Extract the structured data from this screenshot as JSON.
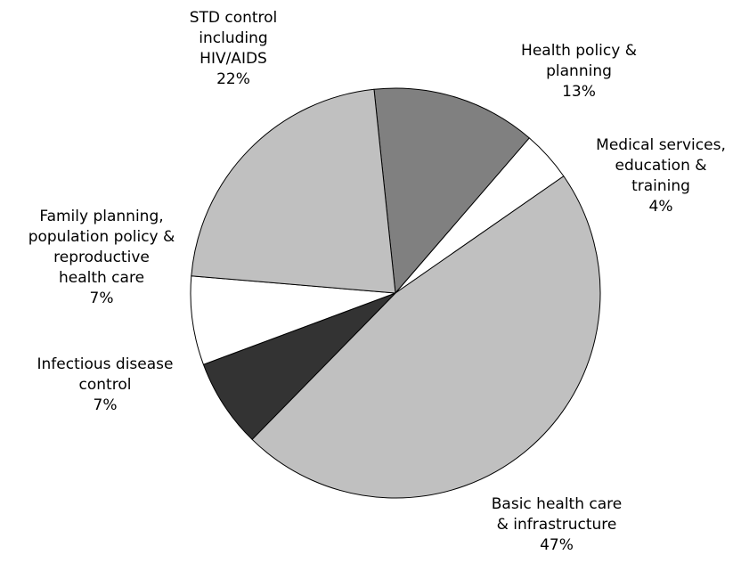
{
  "chart_data": {
    "type": "pie",
    "title": "",
    "start_angle_deg": 264,
    "direction": "clockwise",
    "slices": [
      {
        "label": [
          "Health policy &",
          "planning"
        ],
        "pct_label": "13%",
        "value": 13,
        "color": "#808080"
      },
      {
        "label": [
          "Medical services,",
          "education &",
          "training"
        ],
        "pct_label": "4%",
        "value": 4,
        "color": "#ffffff"
      },
      {
        "label": [
          "Basic health care",
          "& infrastructure"
        ],
        "pct_label": "47%",
        "value": 47,
        "color": "#c0c0c0"
      },
      {
        "label": [
          "Infectious disease",
          "control"
        ],
        "pct_label": "7%",
        "value": 7,
        "color": "#333333"
      },
      {
        "label": [
          "Family planning,",
          "population policy &",
          "reproductive",
          "health care"
        ],
        "pct_label": "7%",
        "value": 7,
        "color": "#ffffff"
      },
      {
        "label": [
          "STD control",
          "including",
          "HIV/AIDS"
        ],
        "pct_label": "22%",
        "value": 22,
        "color": "#c0c0c0"
      }
    ]
  }
}
